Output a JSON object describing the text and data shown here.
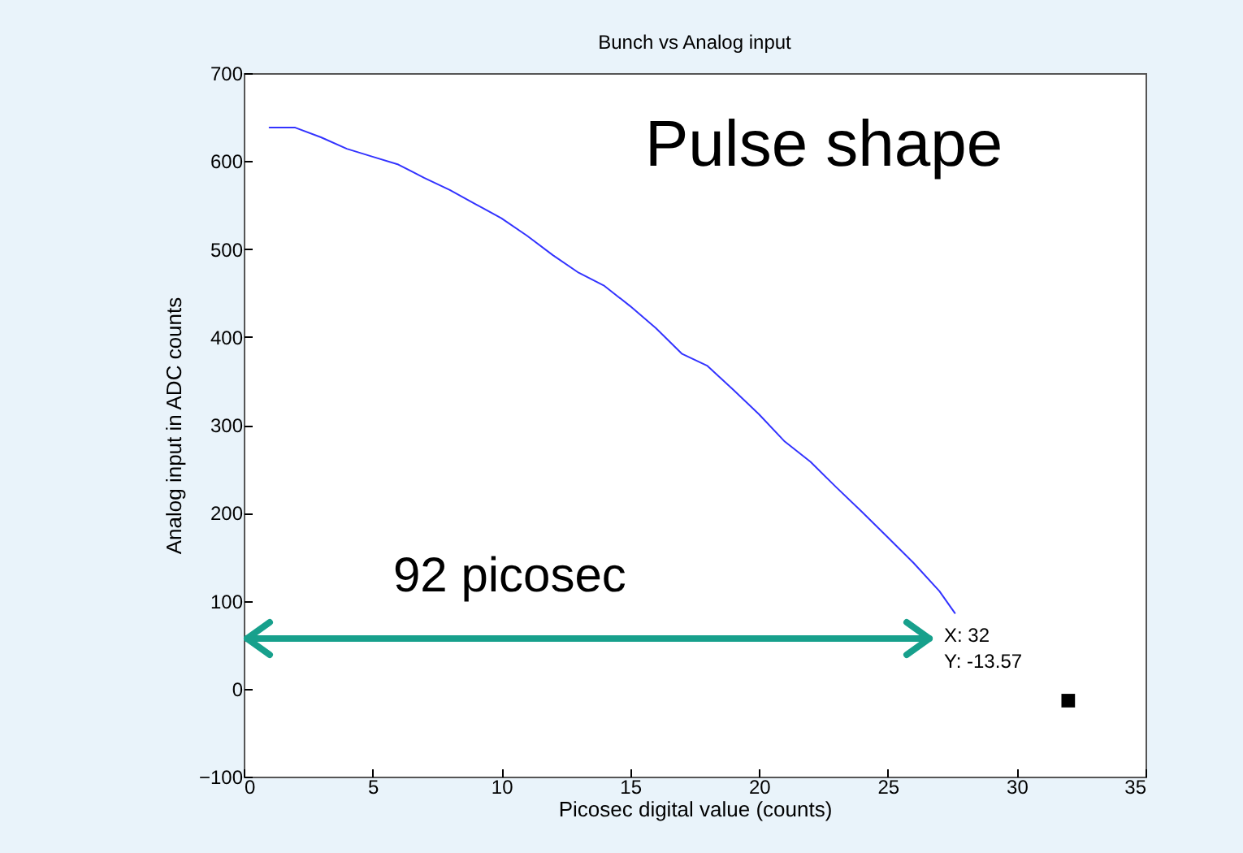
{
  "chart_data": {
    "type": "line",
    "title": "Bunch vs Analog input",
    "xlabel": "Picosec digital value (counts)",
    "ylabel": "Analog input in ADC counts",
    "xlim": [
      0,
      35
    ],
    "xticks": [
      0,
      5,
      10,
      15,
      20,
      25,
      30,
      35
    ],
    "ylim": [
      -100,
      700
    ],
    "yticks": [
      -100,
      0,
      100,
      200,
      300,
      400,
      500,
      600,
      700
    ],
    "grid": false,
    "series": [
      {
        "color": "#3333ff",
        "x": [
          1,
          2,
          3,
          4,
          5,
          6,
          7,
          8,
          9,
          10,
          11,
          12,
          13,
          14,
          15,
          16,
          17,
          18,
          19,
          20,
          21,
          22,
          23,
          24,
          25,
          26,
          27,
          27.6
        ],
        "values": [
          638,
          638,
          627,
          614,
          605,
          596,
          581,
          567,
          551,
          535,
          515,
          493,
          473,
          458,
          435,
          410,
          381,
          367,
          340,
          312,
          281,
          258,
          229,
          201,
          172,
          143,
          111,
          86
        ]
      },
      {
        "type": "scatter",
        "color": "#000000",
        "marker": "square",
        "x": [
          32
        ],
        "values": [
          -13.57
        ]
      }
    ],
    "annotations": [
      "Pulse shape",
      "92 picosec",
      "X: 32",
      "Y: -13.57"
    ]
  }
}
